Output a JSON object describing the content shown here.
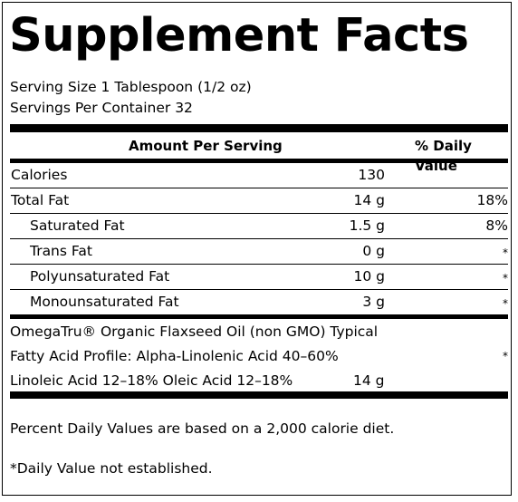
{
  "title": "Supplement Facts",
  "serving_size": "Serving Size 1 Tablespoon (1/2 oz)",
  "servings_per_container": "Servings Per Container 32",
  "header": {
    "amount_per_serving": "Amount Per Serving",
    "daily_value": "% Daily Value"
  },
  "rows": [
    {
      "name": "Calories",
      "amount": "130",
      "dv": ""
    },
    {
      "name": "Total Fat",
      "amount": "14 g",
      "dv": "18%"
    },
    {
      "name": "Saturated Fat",
      "amount": "1.5 g",
      "dv": "8%"
    },
    {
      "name": "Trans Fat",
      "amount": "0 g",
      "dv": "*"
    },
    {
      "name": "Polyunsaturated Fat",
      "amount": "10 g",
      "dv": "*"
    },
    {
      "name": "Monounsaturated Fat",
      "amount": "3 g",
      "dv": "*"
    }
  ],
  "ingredient": {
    "line1": "OmegaTru® Organic Flaxseed Oil (non GMO) Typical",
    "line2": "Fatty Acid Profile: Alpha-Linolenic Acid 40–60%",
    "line3": "Linoleic Acid 12–18% Oleic Acid 12–18%",
    "amount": "14 g",
    "dv": "*"
  },
  "footnotes": {
    "percent_daily": "Percent Daily Values are based on a 2,000 calorie diet.",
    "not_established": "*Daily Value not established."
  }
}
